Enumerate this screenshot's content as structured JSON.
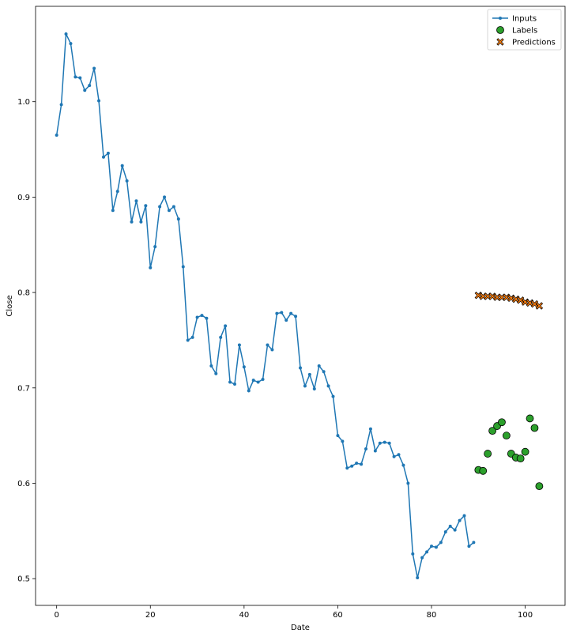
{
  "chart_data": {
    "type": "line",
    "xlabel": "Date",
    "ylabel": "Close",
    "xlim": [
      -4.5,
      108.5
    ],
    "ylim": [
      0.472,
      1.1
    ],
    "xticks": [
      0,
      20,
      40,
      60,
      80,
      100
    ],
    "yticks": [
      0.5,
      0.6,
      0.7,
      0.8,
      0.9,
      1.0
    ],
    "xtick_labels": [
      "0",
      "20",
      "40",
      "60",
      "80",
      "100"
    ],
    "ytick_labels": [
      "0.5",
      "0.6",
      "0.7",
      "0.8",
      "0.9",
      "1.0"
    ],
    "grid": false,
    "legend_position": "top-right",
    "colors": {
      "inputs": "#1f77b4",
      "labels": "#2ca02c",
      "predictions": "#ff7f0e",
      "edge": "#000000"
    },
    "series": [
      {
        "name": "Inputs",
        "kind": "line-with-markers",
        "x": [
          0,
          1,
          2,
          3,
          4,
          5,
          6,
          7,
          8,
          9,
          10,
          11,
          12,
          13,
          14,
          15,
          16,
          17,
          18,
          19,
          20,
          21,
          22,
          23,
          24,
          25,
          26,
          27,
          28,
          29,
          30,
          31,
          32,
          33,
          34,
          35,
          36,
          37,
          38,
          39,
          40,
          41,
          42,
          43,
          44,
          45,
          46,
          47,
          48,
          49,
          50,
          51,
          52,
          53,
          54,
          55,
          56,
          57,
          58,
          59,
          60,
          61,
          62,
          63,
          64,
          65,
          66,
          67,
          68,
          69,
          70,
          71,
          72,
          73,
          74,
          75,
          76,
          77,
          78,
          79,
          80,
          81,
          82,
          83,
          84,
          85,
          86,
          87,
          88,
          89
        ],
        "y": [
          0.965,
          0.997,
          1.071,
          1.061,
          1.026,
          1.025,
          1.012,
          1.017,
          1.035,
          1.001,
          0.942,
          0.946,
          0.886,
          0.906,
          0.933,
          0.917,
          0.874,
          0.896,
          0.874,
          0.891,
          0.826,
          0.848,
          0.89,
          0.9,
          0.886,
          0.89,
          0.877,
          0.827,
          0.75,
          0.753,
          0.774,
          0.776,
          0.773,
          0.723,
          0.715,
          0.753,
          0.765,
          0.706,
          0.704,
          0.745,
          0.722,
          0.697,
          0.708,
          0.706,
          0.709,
          0.745,
          0.74,
          0.778,
          0.779,
          0.771,
          0.778,
          0.775,
          0.721,
          0.702,
          0.714,
          0.699,
          0.723,
          0.717,
          0.702,
          0.691,
          0.65,
          0.644,
          0.616,
          0.618,
          0.621,
          0.62,
          0.636,
          0.657,
          0.634,
          0.642,
          0.643,
          0.642,
          0.628,
          0.63,
          0.619,
          0.6,
          0.526,
          0.501,
          0.522,
          0.528,
          0.534,
          0.533,
          0.538,
          0.549,
          0.555,
          0.551,
          0.561,
          0.566,
          0.534,
          0.538
        ]
      },
      {
        "name": "Labels",
        "kind": "scatter-circle",
        "x": [
          90,
          91,
          92,
          93,
          94,
          95,
          96,
          97,
          98,
          99,
          100,
          101,
          102,
          103
        ],
        "y": [
          0.614,
          0.613,
          0.631,
          0.655,
          0.66,
          0.664,
          0.65,
          0.631,
          0.627,
          0.626,
          0.633,
          0.668,
          0.658,
          0.597
        ]
      },
      {
        "name": "Predictions",
        "kind": "scatter-x",
        "x": [
          90,
          91,
          92,
          93,
          94,
          95,
          96,
          97,
          98,
          99,
          100,
          101,
          102,
          103
        ],
        "y": [
          0.797,
          0.796,
          0.796,
          0.796,
          0.795,
          0.795,
          0.795,
          0.794,
          0.793,
          0.792,
          0.79,
          0.789,
          0.788,
          0.786
        ]
      }
    ]
  }
}
